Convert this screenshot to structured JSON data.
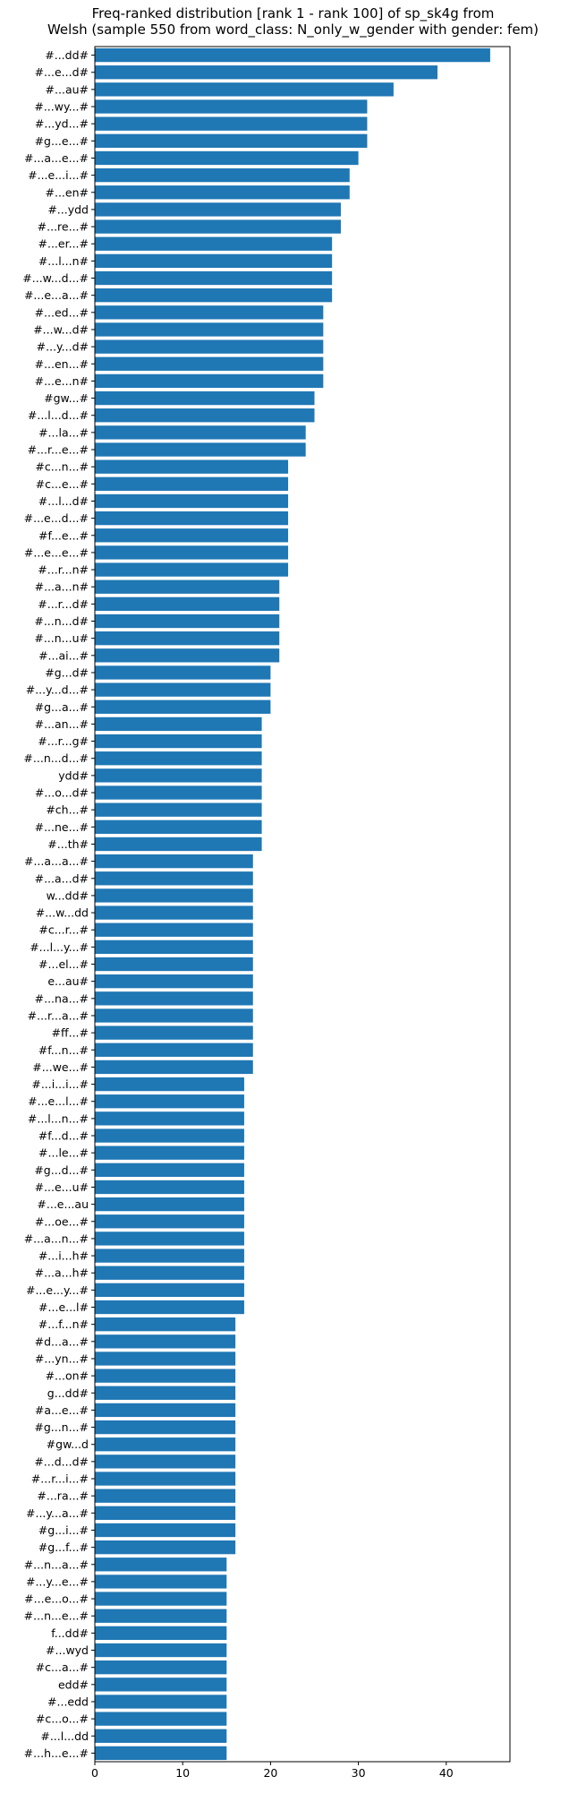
{
  "chart_data": {
    "type": "bar",
    "orientation": "horizontal",
    "title": "Freq-ranked distribution [rank 1 - rank 100] of sp_sk4g from",
    "subtitle": "Welsh (sample 550 from word_class: N_only_w_gender with gender: fem)",
    "xlabel": "",
    "ylabel": "",
    "xlim": [
      0,
      47.25
    ],
    "xticks": [
      0,
      10,
      20,
      30,
      40
    ],
    "grid": false,
    "bar_color": "#1f77b4",
    "categories": [
      "#...dd#",
      "#...e...d#",
      "#...au#",
      "#...wy...#",
      "#...yd...#",
      "#g...e...#",
      "#...a...e...#",
      "#...e...i...#",
      "#...en#",
      "#...ydd",
      "#...re...#",
      "#...er...#",
      "#...l...n#",
      "#...w...d...#",
      "#...e...a...#",
      "#...ed...#",
      "#...w...d#",
      "#...y...d#",
      "#...en...#",
      "#...e...n#",
      "#gw...#",
      "#...l...d...#",
      "#...la...#",
      "#...r...e...#",
      "#c...n...#",
      "#c...e...#",
      "#...l...d#",
      "#...e...d...#",
      "#f...e...#",
      "#...e...e...#",
      "#...r...n#",
      "#...a...n#",
      "#...r...d#",
      "#...n...d#",
      "#...n...u#",
      "#...ai...#",
      "#g...d#",
      "#...y...d...#",
      "#g...a...#",
      "#...an...#",
      "#...r...g#",
      "#...n...d...#",
      "ydd#",
      "#...o...d#",
      "#ch...#",
      "#...ne...#",
      "#...th#",
      "#...a...a...#",
      "#...a...d#",
      "w...dd#",
      "#...w...dd",
      "#c...r...#",
      "#...l...y...#",
      "#...el...#",
      "e...au#",
      "#...na...#",
      "#...r...a...#",
      "#ff...#",
      "#f...n...#",
      "#...we...#",
      "#...i...i...#",
      "#...e...l...#",
      "#...l...n...#",
      "#f...d...#",
      "#...le...#",
      "#g...d...#",
      "#...e...u#",
      "#...e...au",
      "#...oe...#",
      "#...a...n...#",
      "#...i...h#",
      "#...a...h#",
      "#...e...y...#",
      "#...e...l#",
      "#...f...n#",
      "#d...a...#",
      "#...yn...#",
      "#...on#",
      "g...dd#",
      "#a...e...#",
      "#g...n...#",
      "#gw...d",
      "#...d...d#",
      "#...r...i...#",
      "#...ra...#",
      "#...y...a...#",
      "#g...i...#",
      "#g...f...#",
      "#...n...a...#",
      "#...y...e...#",
      "#...e...o...#",
      "#...n...e...#",
      "f...dd#",
      "#...wyd",
      "#c...a...#",
      "edd#",
      "#...edd",
      "#c...o...#",
      "#...l...dd",
      "#...h...e...#"
    ],
    "values": [
      45,
      39,
      34,
      31,
      31,
      31,
      30,
      29,
      29,
      28,
      28,
      27,
      27,
      27,
      27,
      26,
      26,
      26,
      26,
      26,
      25,
      25,
      24,
      24,
      22,
      22,
      22,
      22,
      22,
      22,
      22,
      21,
      21,
      21,
      21,
      21,
      20,
      20,
      20,
      19,
      19,
      19,
      19,
      19,
      19,
      19,
      19,
      18,
      18,
      18,
      18,
      18,
      18,
      18,
      18,
      18,
      18,
      18,
      18,
      18,
      17,
      17,
      17,
      17,
      17,
      17,
      17,
      17,
      17,
      17,
      17,
      17,
      17,
      17,
      16,
      16,
      16,
      16,
      16,
      16,
      16,
      16,
      16,
      16,
      16,
      16,
      16,
      16,
      15,
      15,
      15,
      15,
      15,
      15,
      15,
      15,
      15,
      15,
      15,
      15
    ]
  }
}
